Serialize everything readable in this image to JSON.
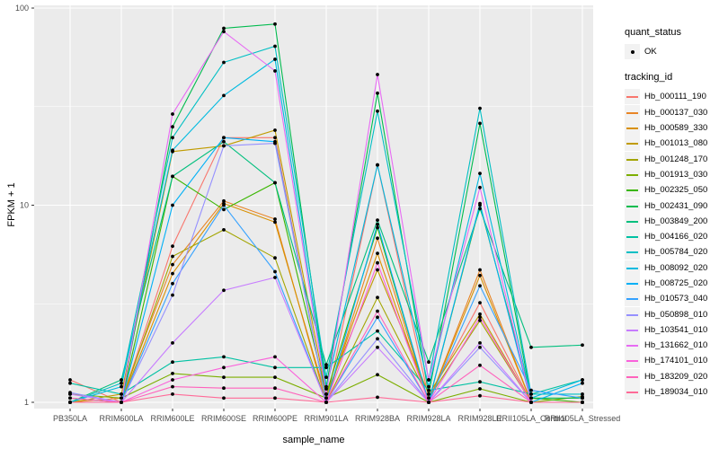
{
  "figure": {
    "xlabel": "sample_name",
    "ylabel": "FPKM + 1"
  },
  "legend": {
    "quant_status": {
      "title": "quant_status",
      "items": [
        {
          "label": "OK",
          "marker": "point-icon"
        }
      ]
    },
    "tracking": {
      "title": "tracking_id"
    }
  },
  "chart_data": {
    "type": "line",
    "title": "",
    "xlabel": "sample_name",
    "ylabel": "FPKM + 1",
    "y_scale": "log10",
    "y_ticks": [
      1,
      10,
      100
    ],
    "y_minor_ticks": [
      3.162,
      31.62
    ],
    "ylim": [
      0.93,
      105
    ],
    "grid": true,
    "legend_position": "right",
    "panel_bg": "#EBEBEB",
    "grid_color": "#FFFFFF",
    "axis_text_color": "#4D4D4D",
    "point_color": "#000000",
    "categories": [
      "PB350LA",
      "RRIM600LA",
      "RRIM600LE",
      "RRIM600SE",
      "RRIM600PE",
      "RRIM901LA",
      "RRIM928BA",
      "RRIM928LA",
      "RRIM928LE",
      "RRII105LA_Control",
      "RRII105LA_Stressed"
    ],
    "series": [
      {
        "name": "Hb_000111_190",
        "color": "#F8766D",
        "values": [
          1.3,
          1.0,
          6.2,
          22,
          22,
          1.0,
          16,
          1.05,
          3.2,
          1.0,
          1.0
        ]
      },
      {
        "name": "Hb_000137_030",
        "color": "#E88526",
        "values": [
          1.0,
          1.05,
          5.0,
          10.5,
          8.5,
          1.0,
          6.8,
          1.0,
          4.7,
          1.0,
          1.0
        ]
      },
      {
        "name": "Hb_000589_330",
        "color": "#D89000",
        "values": [
          1.0,
          1.0,
          4.5,
          10.2,
          8.2,
          1.05,
          5.7,
          1.0,
          4.4,
          1.0,
          1.0
        ]
      },
      {
        "name": "Hb_001013_080",
        "color": "#C09B00",
        "values": [
          1.0,
          1.1,
          18.7,
          20,
          24,
          1.1,
          4.7,
          1.1,
          2.8,
          1.0,
          1.0
        ]
      },
      {
        "name": "Hb_001248_170",
        "color": "#A3A500",
        "values": [
          1.0,
          1.0,
          5.5,
          7.5,
          5.4,
          1.0,
          3.4,
          1.05,
          2.6,
          1.0,
          1.0
        ]
      },
      {
        "name": "Hb_001913_030",
        "color": "#7CAE00",
        "values": [
          1.1,
          1.05,
          1.4,
          1.34,
          1.34,
          1.05,
          1.38,
          1.0,
          1.17,
          1.0,
          1.07
        ]
      },
      {
        "name": "Hb_002325_050",
        "color": "#39B600",
        "values": [
          1.0,
          1.0,
          14,
          9.5,
          13,
          1.1,
          7.7,
          1.0,
          10,
          1.05,
          1.0
        ]
      },
      {
        "name": "Hb_002431_090",
        "color": "#00BB4E",
        "values": [
          1.05,
          1.0,
          25,
          79,
          83,
          1.2,
          37,
          1.1,
          26,
          1.05,
          1.05
        ]
      },
      {
        "name": "Hb_003849_200",
        "color": "#00BF7D",
        "values": [
          1.0,
          1.3,
          14,
          21,
          13,
          1.55,
          8.4,
          1.6,
          9.6,
          1.9,
          1.95
        ]
      },
      {
        "name": "Hb_004166_020",
        "color": "#00C1A3",
        "values": [
          1.25,
          1.1,
          1.6,
          1.7,
          1.5,
          1.5,
          2.3,
          1.15,
          1.27,
          1.1,
          1.3
        ]
      },
      {
        "name": "Hb_005784_020",
        "color": "#00BFC4",
        "values": [
          1.0,
          1.25,
          22,
          53,
          64,
          1.34,
          30,
          1.3,
          31,
          1.1,
          1.1
        ]
      },
      {
        "name": "Hb_008092_020",
        "color": "#00BAE0",
        "values": [
          1.0,
          1.2,
          19,
          36,
          55,
          1.17,
          16,
          1.2,
          14.5,
          1.05,
          1.3
        ]
      },
      {
        "name": "Hb_008725_020",
        "color": "#00B0F6",
        "values": [
          1.0,
          1.0,
          10,
          22,
          21,
          1.0,
          8.0,
          1.0,
          10.2,
          1.0,
          1.25
        ]
      },
      {
        "name": "Hb_010573_040",
        "color": "#35A2FF",
        "values": [
          1.0,
          1.0,
          4.0,
          10.0,
          4.6,
          1.0,
          2.7,
          1.0,
          3.9,
          1.15,
          1.05
        ]
      },
      {
        "name": "Hb_050898_010",
        "color": "#9590FF",
        "values": [
          1.12,
          1.0,
          3.5,
          20,
          20.6,
          1.0,
          2.1,
          1.0,
          1.9,
          1.0,
          1.0
        ]
      },
      {
        "name": "Hb_103541_010",
        "color": "#C77CFF",
        "values": [
          1.1,
          1.0,
          2.0,
          3.7,
          4.3,
          1.0,
          1.9,
          1.0,
          2.0,
          1.0,
          1.0
        ]
      },
      {
        "name": "Hb_131662_010",
        "color": "#E76BF3",
        "values": [
          1.0,
          1.0,
          29,
          76,
          48,
          1.1,
          46,
          1.3,
          12.3,
          1.0,
          1.0
        ]
      },
      {
        "name": "Hb_174101_010",
        "color": "#FA62DB",
        "values": [
          1.0,
          1.0,
          1.3,
          1.5,
          1.7,
          1.0,
          5.1,
          1.0,
          2.7,
          1.0,
          1.0
        ]
      },
      {
        "name": "Hb_183209_020",
        "color": "#FF62BC",
        "values": [
          1.05,
          1.0,
          1.2,
          1.18,
          1.18,
          1.0,
          2.9,
          1.0,
          1.54,
          1.0,
          1.0
        ]
      },
      {
        "name": "Hb_189034_010",
        "color": "#FF6A98",
        "values": [
          1.0,
          1.0,
          1.1,
          1.05,
          1.05,
          1.0,
          1.06,
          1.0,
          1.08,
          1.0,
          1.0
        ]
      }
    ]
  }
}
